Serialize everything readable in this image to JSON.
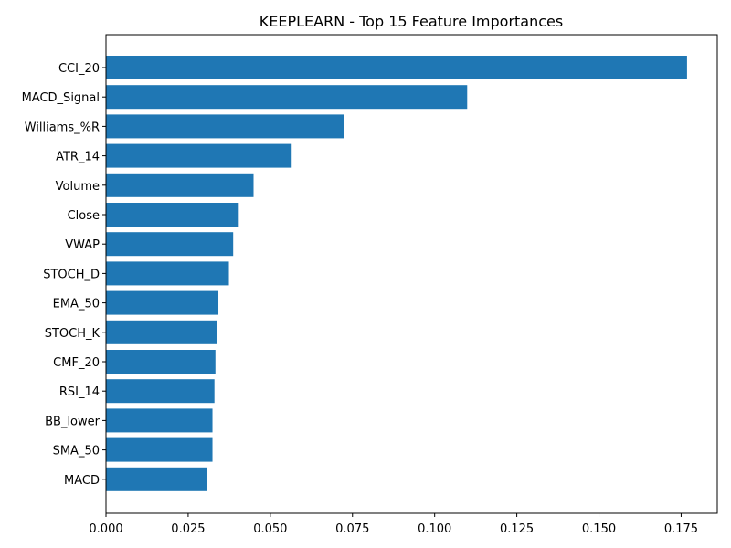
{
  "chart_data": {
    "type": "bar",
    "orientation": "horizontal",
    "title": "KEEPLEARN - Top 15 Feature Importances",
    "xlabel": "",
    "ylabel": "",
    "xlim": [
      0,
      0.186
    ],
    "xticks": [
      0,
      0.025,
      0.05,
      0.075,
      0.1,
      0.125,
      0.15,
      0.175
    ],
    "xtick_labels": [
      "0.000",
      "0.025",
      "0.050",
      "0.075",
      "0.100",
      "0.125",
      "0.150",
      "0.175"
    ],
    "categories": [
      "CCI_20",
      "MACD_Signal",
      "Williams_%R",
      "ATR_14",
      "Volume",
      "Close",
      "VWAP",
      "STOCH_D",
      "EMA_50",
      "STOCH_K",
      "CMF_20",
      "RSI_14",
      "BB_lower",
      "SMA_50",
      "MACD"
    ],
    "values": [
      0.1768,
      0.1099,
      0.0725,
      0.0565,
      0.0449,
      0.0404,
      0.0387,
      0.0374,
      0.0342,
      0.0339,
      0.0333,
      0.033,
      0.0324,
      0.0324,
      0.0307
    ],
    "bar_color": "#1f77b4",
    "grid": false,
    "legend": "none"
  }
}
